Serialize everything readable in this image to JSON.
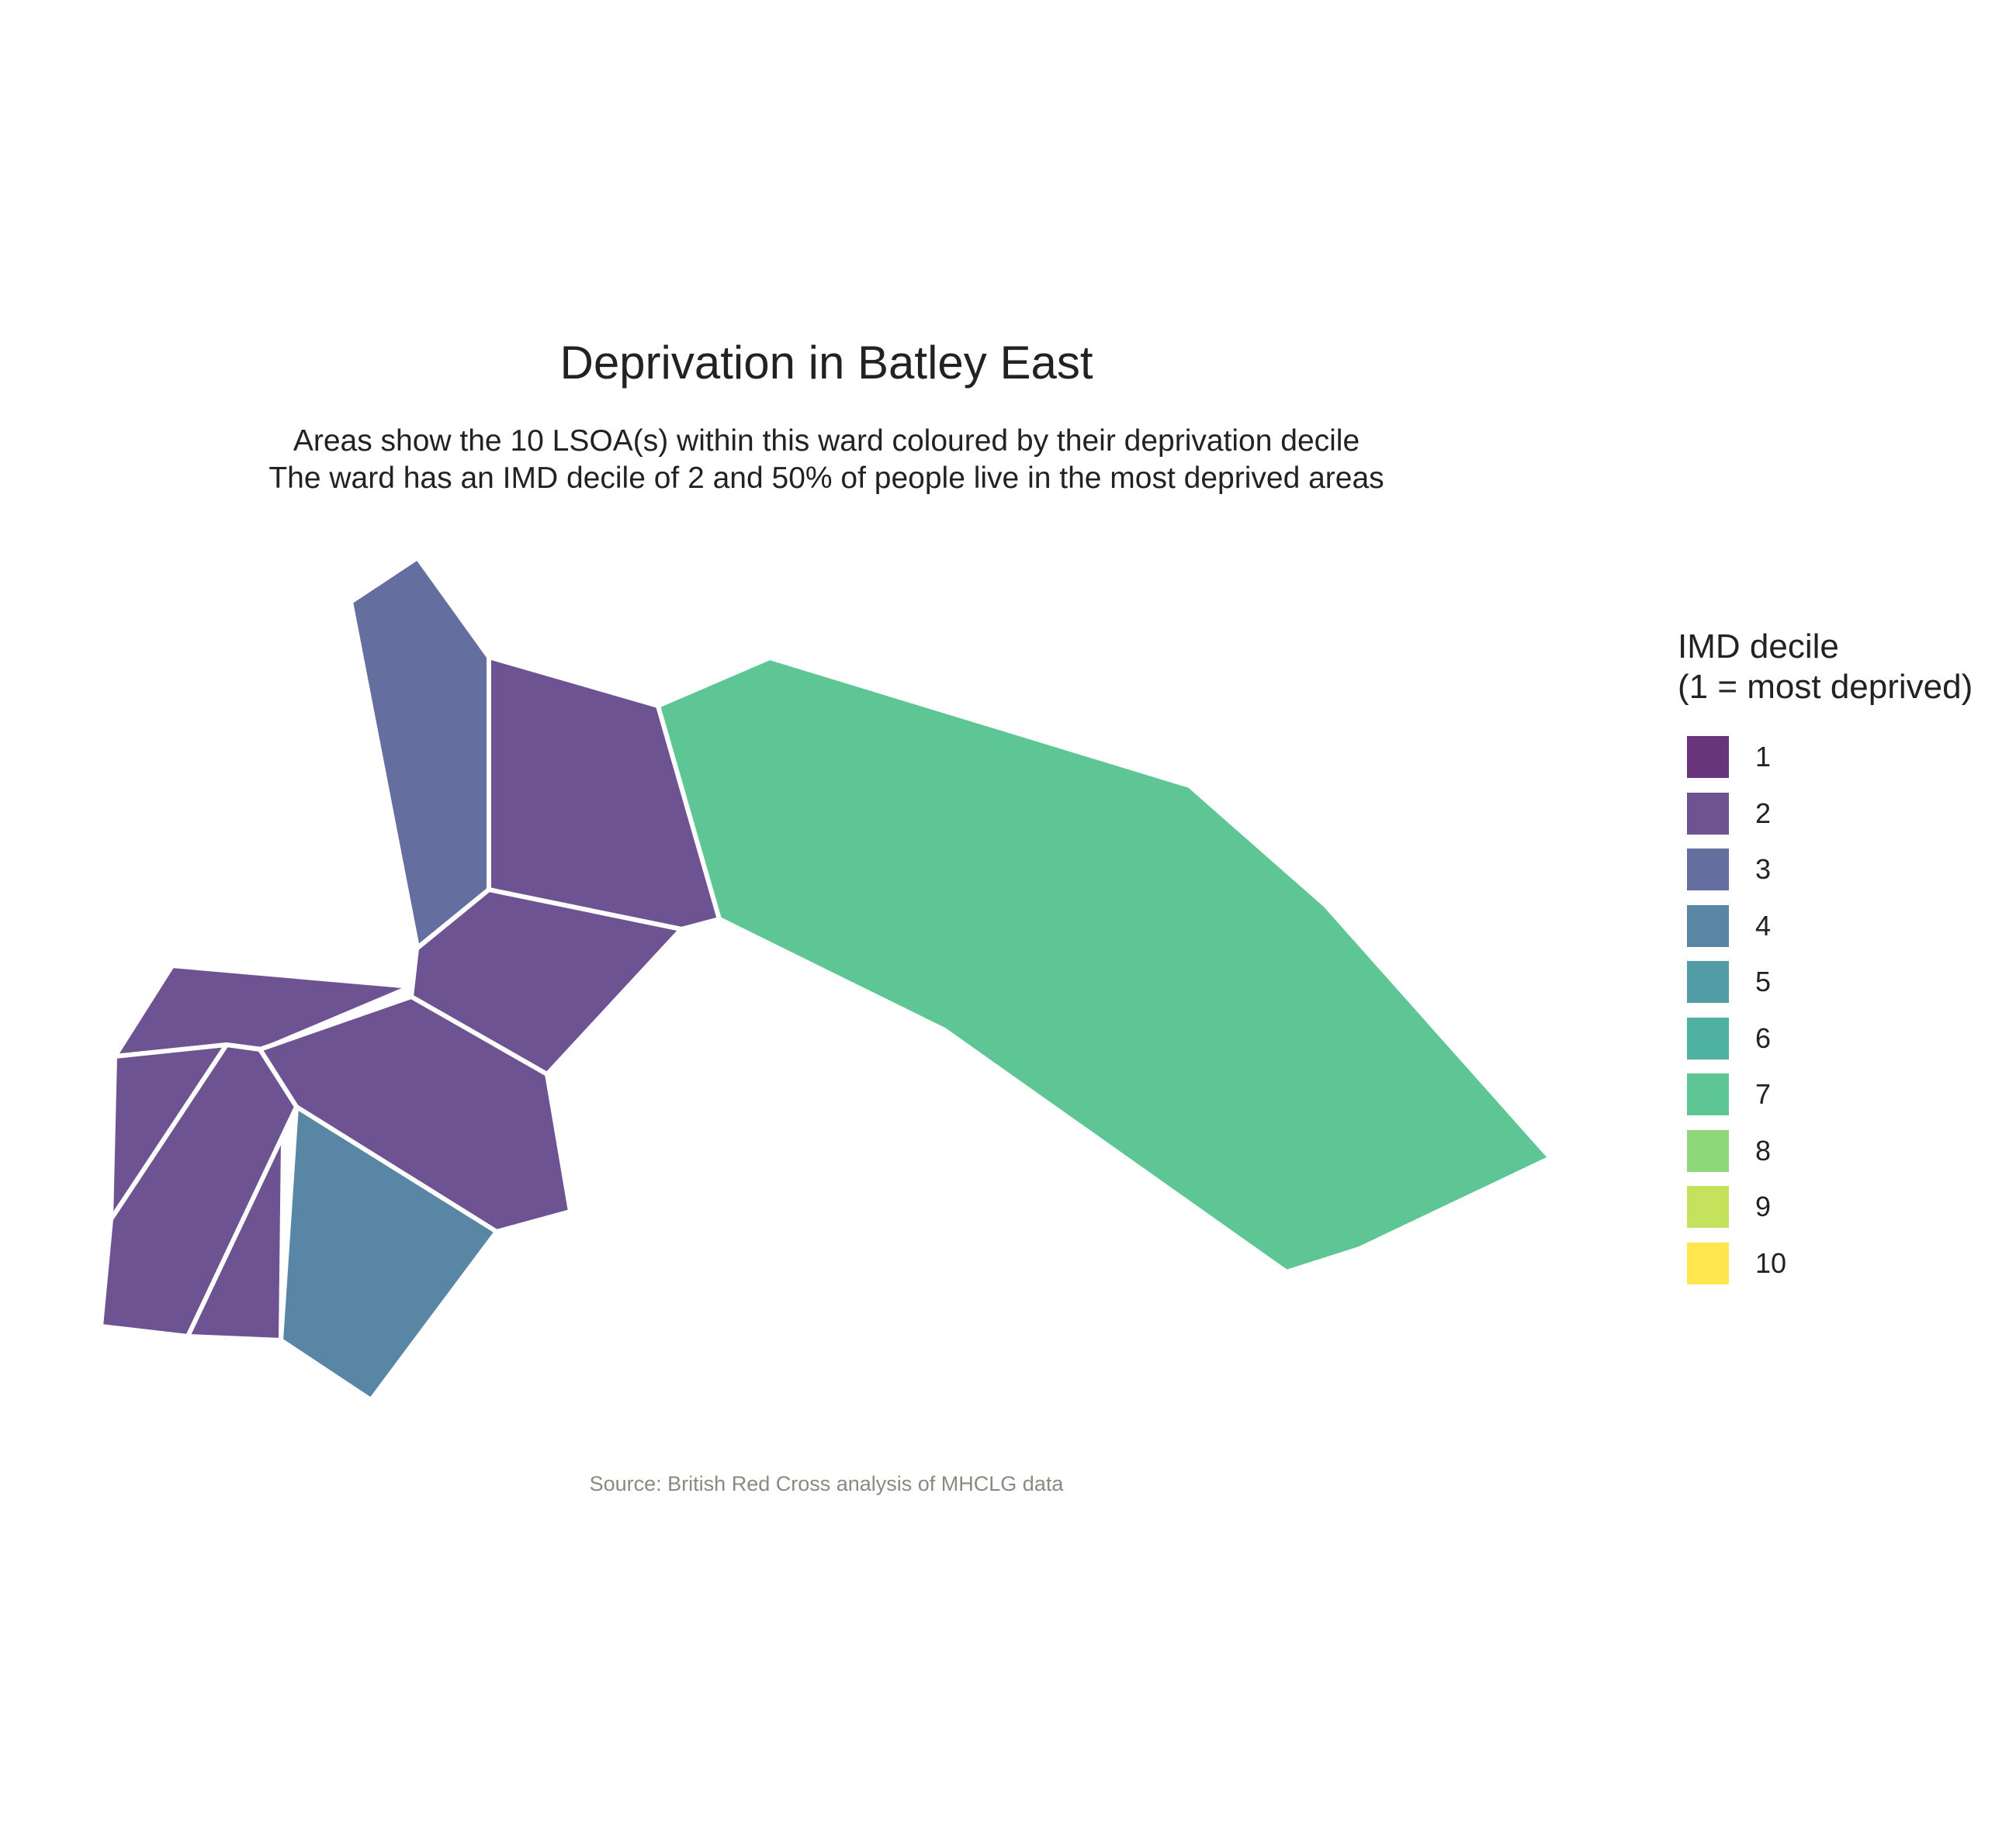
{
  "title": "Deprivation in Batley East",
  "subtitle_lines": [
    "Areas show the 10 LSOA(s) within this ward coloured by their deprivation decile",
    "The ward has an IMD decile of 2 and 50% of people live in the most deprived areas"
  ],
  "caption": "Source: British Red Cross analysis of MHCLG data",
  "legend": {
    "title_lines": [
      "IMD decile",
      "(1 = most deprived)"
    ],
    "items": [
      {
        "label": "1",
        "color": "#68347B"
      },
      {
        "label": "2",
        "color": "#6E5393"
      },
      {
        "label": "3",
        "color": "#646E9F"
      },
      {
        "label": "4",
        "color": "#5886A4"
      },
      {
        "label": "5",
        "color": "#529CA5"
      },
      {
        "label": "6",
        "color": "#4FB2A0"
      },
      {
        "label": "7",
        "color": "#5EC695"
      },
      {
        "label": "8",
        "color": "#8ED87A"
      },
      {
        "label": "9",
        "color": "#C4E25B"
      },
      {
        "label": "10",
        "color": "#FDE74C"
      }
    ]
  },
  "map_data": {
    "area_count": 10,
    "ward_imd_decile": 2,
    "pct_most_deprived": 50,
    "areas": [
      {
        "id": "area-north",
        "decile": 3
      },
      {
        "id": "area-north-centre",
        "decile": 2
      },
      {
        "id": "area-east",
        "decile": 7
      },
      {
        "id": "area-centre",
        "decile": 2
      },
      {
        "id": "area-west-upper",
        "decile": 2
      },
      {
        "id": "area-south-centre",
        "decile": 2
      },
      {
        "id": "area-west-edge",
        "decile": 2
      },
      {
        "id": "area-southwest",
        "decile": 2
      },
      {
        "id": "area-south-small",
        "decile": 2
      },
      {
        "id": "area-south",
        "decile": 4
      }
    ]
  }
}
